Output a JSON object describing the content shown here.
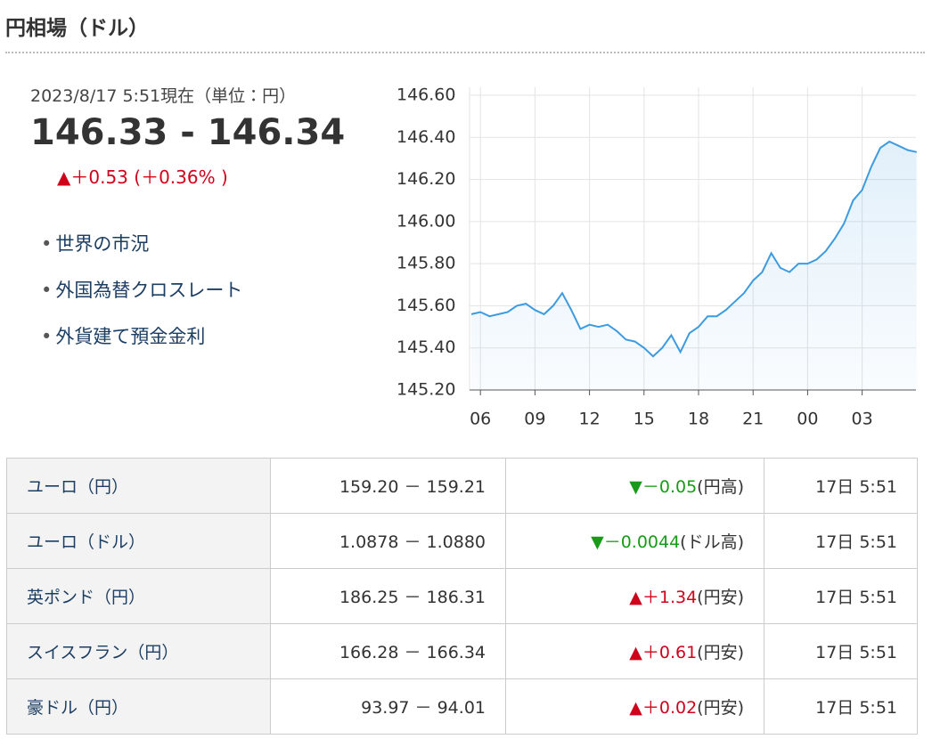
{
  "header": {
    "title": "円相場（ドル）"
  },
  "quote": {
    "timestamp": "2023/8/17 5:51現在（単位：円）",
    "price": "146.33 - 146.34",
    "change": "▲＋0.53 (＋0.36% )",
    "change_color": "#d0021b"
  },
  "links": [
    "世界の市況",
    "外国為替クロスレート",
    "外貨建て預金金利"
  ],
  "chart_data": {
    "type": "line",
    "categories": [
      null,
      "06",
      null,
      null,
      null,
      null,
      null,
      "09",
      null,
      null,
      null,
      null,
      null,
      "12",
      null,
      null,
      null,
      null,
      null,
      "15",
      null,
      null,
      null,
      null,
      null,
      "18",
      null,
      null,
      null,
      null,
      null,
      "21",
      null,
      null,
      null,
      null,
      null,
      "00",
      null,
      null,
      null,
      null,
      null,
      "03",
      null,
      null,
      null,
      null,
      null,
      null
    ],
    "values": [
      145.56,
      145.57,
      145.55,
      145.56,
      145.57,
      145.6,
      145.61,
      145.58,
      145.56,
      145.6,
      145.66,
      145.58,
      145.49,
      145.51,
      145.5,
      145.51,
      145.48,
      145.44,
      145.43,
      145.4,
      145.36,
      145.4,
      145.46,
      145.38,
      145.47,
      145.5,
      145.55,
      145.55,
      145.58,
      145.62,
      145.66,
      145.72,
      145.76,
      145.85,
      145.78,
      145.76,
      145.8,
      145.8,
      145.82,
      145.86,
      145.92,
      145.99,
      146.1,
      146.15,
      146.26,
      146.35,
      146.38,
      146.36,
      146.34,
      146.33
    ],
    "color": "#3d9be0",
    "ylim": [
      145.2,
      146.6
    ],
    "yticks": [
      {
        "value": 145.2,
        "label": "145.20"
      },
      {
        "value": 145.4,
        "label": "145.40"
      },
      {
        "value": 145.6,
        "label": "145.60"
      },
      {
        "value": 145.8,
        "label": "145.80"
      },
      {
        "value": 146.0,
        "label": "146.00"
      },
      {
        "value": 146.2,
        "label": "146.20"
      },
      {
        "value": 146.4,
        "label": "146.40"
      },
      {
        "value": 146.6,
        "label": "146.60"
      }
    ],
    "grid": true
  },
  "table": {
    "rows": [
      [
        "ユーロ（円）",
        "159.20 － 159.21",
        "▼－0.05",
        "(円高)",
        "17日 5:51"
      ],
      [
        "ユーロ（ドル）",
        "1.0878 － 1.0880",
        "▼－0.0044",
        "(ドル高)",
        "17日 5:51"
      ],
      [
        "英ポンド（円）",
        "186.25 － 186.31",
        "▲＋1.34",
        "(円安)",
        "17日 5:51"
      ],
      [
        "スイスフラン（円）",
        "166.28 － 166.34",
        "▲＋0.61",
        "(円安)",
        "17日 5:51"
      ],
      [
        "豪ドル（円）",
        "93.97 － 94.01",
        "▲＋0.02",
        "(円安)",
        "17日 5:51"
      ]
    ],
    "change_colors": [
      "#1a9a1a",
      "#1a9a1a",
      "#d0021b",
      "#d0021b",
      "#d0021b"
    ]
  }
}
